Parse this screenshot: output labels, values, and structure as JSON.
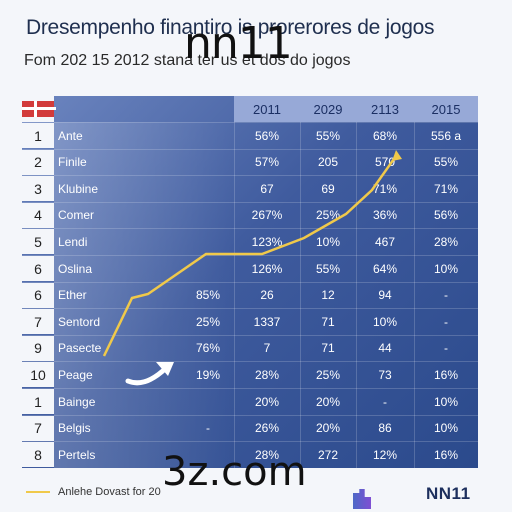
{
  "header": {
    "title": "Dresempenho finantiro is prorerores de jogos",
    "subtitle": "Fom 202 15 2012 stana ter us et dos do jogos",
    "overlay_top": "nn11",
    "overlay_bottom": "3z.com"
  },
  "table": {
    "columns": [
      "2011",
      "2029",
      "2113",
      "2015"
    ],
    "rows": [
      {
        "n": "1",
        "name": "Ante",
        "a": "",
        "b": "56%",
        "c": "55%",
        "d": "68%",
        "e": "556 a"
      },
      {
        "n": "2",
        "name": "Finile",
        "a": "",
        "b": "57%",
        "c": "205",
        "d": "570",
        "e": "55%"
      },
      {
        "n": "3",
        "name": "Klubine",
        "a": "",
        "b": "67",
        "c": "69",
        "d": "71%",
        "e": "71%"
      },
      {
        "n": "4",
        "name": "Comer",
        "a": "",
        "b": "267%",
        "c": "25%",
        "d": "36%",
        "e": "56%"
      },
      {
        "n": "5",
        "name": "Lendi",
        "a": "",
        "b": "123%",
        "c": "10%",
        "d": "467",
        "e": "28%"
      },
      {
        "n": "6",
        "name": "Oslina",
        "a": "",
        "b": "126%",
        "c": "55%",
        "d": "64%",
        "e": "10%"
      },
      {
        "n": "6",
        "name": "Ether",
        "a": "85%",
        "b": "26",
        "c": "12",
        "d": "94",
        "e": "-"
      },
      {
        "n": "7",
        "name": "Sentord",
        "a": "25%",
        "b": "1337",
        "c": "71",
        "d": "10%",
        "e": "-"
      },
      {
        "n": "9",
        "name": "Pasecte",
        "a": "76%",
        "b": "7",
        "c": "71",
        "d": "44",
        "e": "-"
      },
      {
        "n": "10",
        "name": "Peage",
        "a": "19%",
        "b": "28%",
        "c": "25%",
        "d": "73",
        "e": "16%"
      },
      {
        "n": "1",
        "name": "Bainge",
        "a": "",
        "b": "20%",
        "c": "20%",
        "d": "-",
        "e": "10%"
      },
      {
        "n": "7",
        "name": "Belgis",
        "a": "-",
        "b": "26%",
        "c": "20%",
        "d": "86",
        "e": "10%"
      },
      {
        "n": "8",
        "name": "Pertels",
        "a": "",
        "b": "28%",
        "c": "272",
        "d": "12%",
        "e": "16%"
      }
    ]
  },
  "legend": {
    "label": "Anlehe Dovast for 20",
    "color": "#f0c94a"
  },
  "footer": {
    "logo": "NN11"
  }
}
